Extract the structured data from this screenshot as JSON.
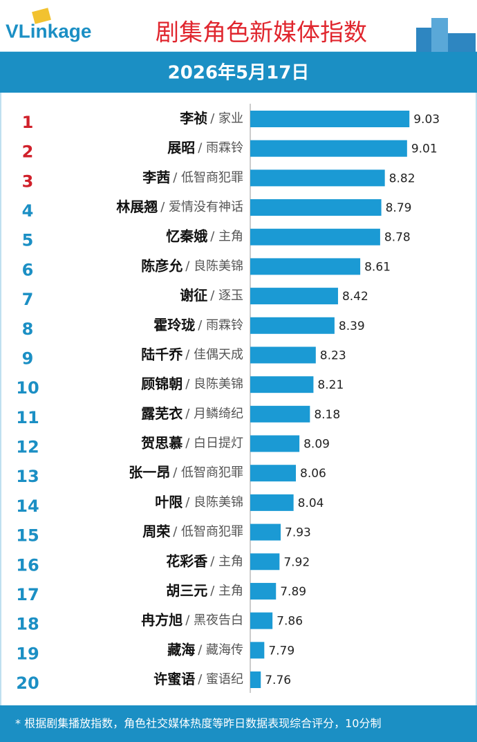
{
  "chart_data": {
    "type": "bar",
    "orientation": "horizontal",
    "logo": "VLinkage",
    "title": "剧集角色新媒体指数",
    "subtitle": "2026年5月17日",
    "ranks": [
      1,
      2,
      3,
      4,
      5,
      6,
      7,
      8,
      9,
      10,
      11,
      12,
      13,
      14,
      15,
      16,
      17,
      18,
      19,
      20
    ],
    "categories": [
      "李祯",
      "展昭",
      "李茜",
      "林展翘",
      "忆秦娥",
      "陈彦允",
      "谢征",
      "霍玲珑",
      "陆千乔",
      "顾锦朝",
      "露芜衣",
      "贺思慕",
      "张一昂",
      "叶限",
      "周荣",
      "花彩香",
      "胡三元",
      "冉方旭",
      "藏海",
      "许蜜语"
    ],
    "dramas": [
      "/ 家业",
      "/ 雨霖铃",
      "/ 低智商犯罪",
      "/ 爱情没有神话",
      "/ 主角",
      "/ 良陈美锦",
      "/ 逐玉",
      "/ 雨霖铃",
      "/ 佳偶天成",
      "/ 良陈美锦",
      "/ 月鳞绮纪",
      "/ 白日提灯",
      "/ 低智商犯罪",
      "/ 良陈美锦",
      "/ 低智商犯罪",
      "/ 主角",
      "/ 主角",
      "/ 黑夜告白",
      "/ 藏海传",
      "/ 蜜语纪"
    ],
    "values": [
      9.03,
      9.01,
      8.82,
      8.79,
      8.78,
      8.61,
      8.42,
      8.39,
      8.23,
      8.21,
      8.18,
      8.09,
      8.06,
      8.04,
      7.93,
      7.92,
      7.89,
      7.86,
      7.79,
      7.76
    ],
    "color": "#1b9ad4",
    "top_rank_color": "#d0202a",
    "rank_color": "#1b8fc4",
    "xlim": [
      7.67,
      9.2
    ],
    "footnote": "* 根据剧集播放指数，角色社交媒体热度等昨日数据表现综合评分，10分制"
  }
}
